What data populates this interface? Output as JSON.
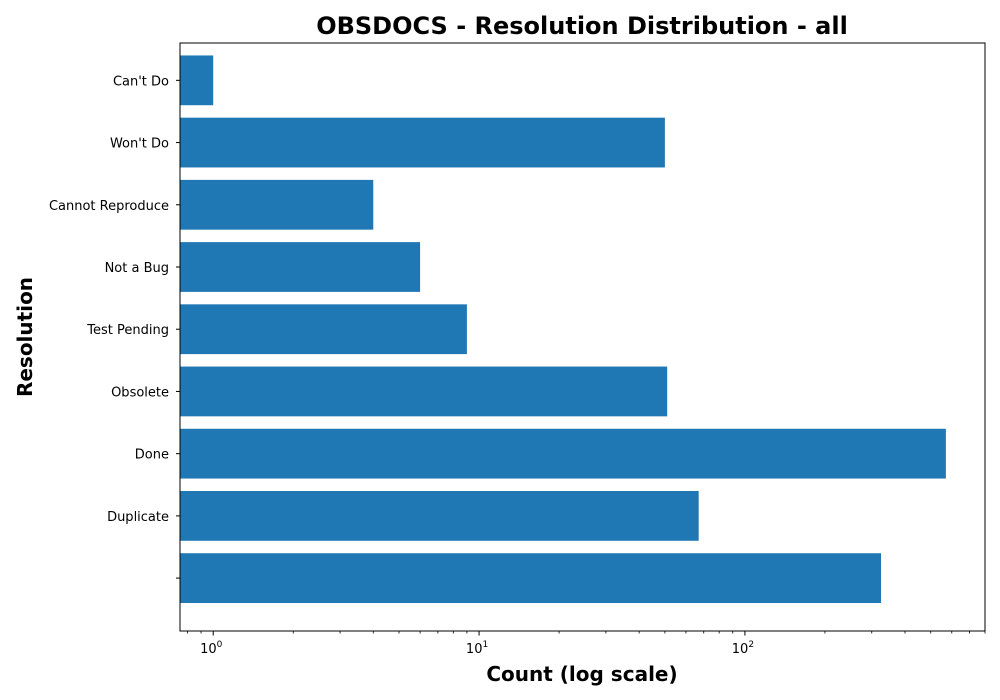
{
  "chart_data": {
    "type": "bar",
    "orientation": "horizontal",
    "title": "OBSDOCS - Resolution Distribution - all",
    "xlabel": "Count (log scale)",
    "ylabel": "Resolution",
    "x_scale": "log",
    "xlim": [
      0.75,
      800
    ],
    "x_ticks": [
      {
        "value": 1,
        "base": "10",
        "exp": "0"
      },
      {
        "value": 10,
        "base": "10",
        "exp": "1"
      },
      {
        "value": 100,
        "base": "10",
        "exp": "2"
      }
    ],
    "categories": [
      "",
      "Duplicate",
      "Done",
      "Obsolete",
      "Test Pending",
      "Not a Bug",
      "Cannot Reproduce",
      "Won't Do",
      "Can't Do"
    ],
    "values": [
      325,
      67,
      570,
      51,
      9,
      6,
      4,
      50,
      1
    ],
    "bar_color": "#1f77b4",
    "grid": false
  }
}
